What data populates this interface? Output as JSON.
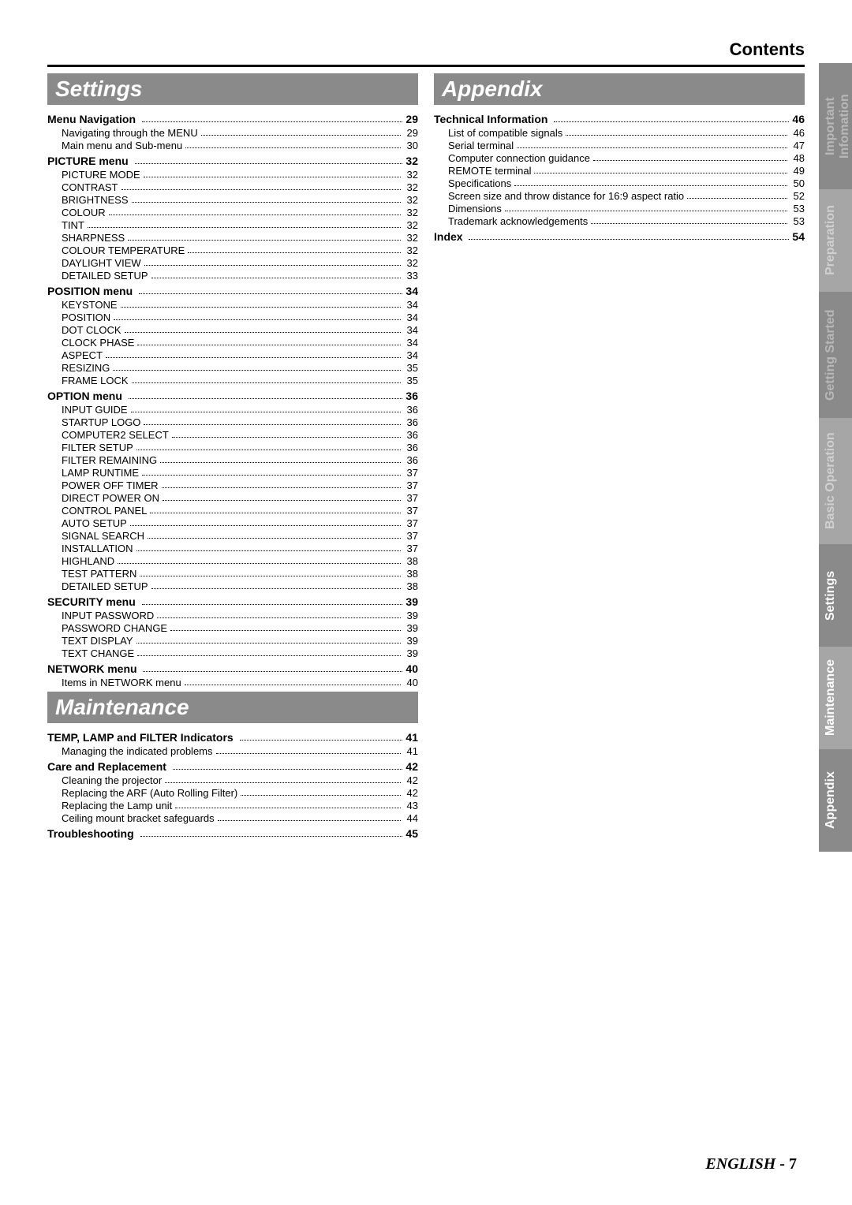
{
  "page": {
    "contents_label": "Contents",
    "footer_language": "ENGLISH",
    "footer_sep": " - ",
    "footer_page": "7"
  },
  "tabs": [
    {
      "label": "Important\nInfomation",
      "bg": "#8a8a8a",
      "color": "#b8b8b8"
    },
    {
      "label": "Preparation",
      "bg": "#a6a6a6",
      "color": "#d0d0d0"
    },
    {
      "label": "Getting Started",
      "bg": "#8a8a8a",
      "color": "#b8b8b8"
    },
    {
      "label": "Basic Operation",
      "bg": "#a6a6a6",
      "color": "#d0d0d0"
    },
    {
      "label": "Settings",
      "bg": "#8a8a8a",
      "color": "#ffffff"
    },
    {
      "label": "Maintenance",
      "bg": "#a6a6a6",
      "color": "#ffffff"
    },
    {
      "label": "Appendix",
      "bg": "#8a8a8a",
      "color": "#ffffff"
    }
  ],
  "left": {
    "section1": {
      "title": "Settings",
      "groups": [
        {
          "title": "Menu Navigation",
          "page": "29",
          "items": [
            {
              "label": "Navigating through the MENU",
              "page": "29"
            },
            {
              "label": "Main menu and Sub-menu",
              "page": "30"
            }
          ]
        },
        {
          "title": "PICTURE menu",
          "page": "32",
          "items": [
            {
              "label": "PICTURE MODE",
              "page": "32"
            },
            {
              "label": "CONTRAST",
              "page": "32"
            },
            {
              "label": "BRIGHTNESS",
              "page": "32"
            },
            {
              "label": "COLOUR",
              "page": "32"
            },
            {
              "label": "TINT",
              "page": "32"
            },
            {
              "label": "SHARPNESS",
              "page": "32"
            },
            {
              "label": "COLOUR TEMPERATURE",
              "page": "32"
            },
            {
              "label": "DAYLIGHT VIEW",
              "page": "32"
            },
            {
              "label": "DETAILED SETUP",
              "page": "33"
            }
          ]
        },
        {
          "title": "POSITION menu",
          "page": "34",
          "items": [
            {
              "label": "KEYSTONE",
              "page": "34"
            },
            {
              "label": "POSITION",
              "page": "34"
            },
            {
              "label": "DOT CLOCK",
              "page": "34"
            },
            {
              "label": "CLOCK PHASE",
              "page": "34"
            },
            {
              "label": "ASPECT",
              "page": "34"
            },
            {
              "label": "RESIZING",
              "page": "35"
            },
            {
              "label": "FRAME LOCK",
              "page": "35"
            }
          ]
        },
        {
          "title": "OPTION menu",
          "page": "36",
          "items": [
            {
              "label": "INPUT GUIDE",
              "page": "36"
            },
            {
              "label": "STARTUP LOGO",
              "page": "36"
            },
            {
              "label": "COMPUTER2 SELECT",
              "page": "36"
            },
            {
              "label": "FILTER SETUP",
              "page": "36"
            },
            {
              "label": "FILTER REMAINING",
              "page": "36"
            },
            {
              "label": "LAMP RUNTIME",
              "page": "37"
            },
            {
              "label": "POWER OFF TIMER",
              "page": "37"
            },
            {
              "label": "DIRECT POWER ON",
              "page": "37"
            },
            {
              "label": "CONTROL PANEL",
              "page": "37"
            },
            {
              "label": "AUTO SETUP",
              "page": "37"
            },
            {
              "label": "SIGNAL SEARCH",
              "page": "37"
            },
            {
              "label": "INSTALLATION",
              "page": "37"
            },
            {
              "label": "HIGHLAND",
              "page": "38"
            },
            {
              "label": "TEST PATTERN",
              "page": "38"
            },
            {
              "label": "DETAILED SETUP",
              "page": "38"
            }
          ]
        },
        {
          "title": "SECURITY menu",
          "page": "39",
          "items": [
            {
              "label": "INPUT PASSWORD",
              "page": "39"
            },
            {
              "label": "PASSWORD CHANGE",
              "page": "39"
            },
            {
              "label": "TEXT DISPLAY",
              "page": "39"
            },
            {
              "label": "TEXT CHANGE",
              "page": "39"
            }
          ]
        },
        {
          "title": "NETWORK menu",
          "page": "40",
          "items": [
            {
              "label": "Items in NETWORK menu",
              "page": "40"
            }
          ]
        }
      ]
    },
    "section2": {
      "title": "Maintenance",
      "groups": [
        {
          "title": "TEMP, LAMP and FILTER Indicators",
          "page": "41",
          "items": [
            {
              "label": "Managing the indicated problems",
              "page": "41"
            }
          ]
        },
        {
          "title": "Care and Replacement",
          "page": "42",
          "items": [
            {
              "label": "Cleaning the projector",
              "page": "42"
            },
            {
              "label": "Replacing the ARF (Auto Rolling Filter)",
              "page": "42"
            },
            {
              "label": "Replacing the Lamp unit",
              "page": "43"
            },
            {
              "label": "Ceiling mount bracket safeguards",
              "page": "44"
            }
          ]
        },
        {
          "title": "Troubleshooting",
          "page": "45",
          "items": []
        }
      ]
    }
  },
  "right": {
    "section1": {
      "title": "Appendix",
      "groups": [
        {
          "title": "Technical Information",
          "page": "46",
          "items": [
            {
              "label": "List of compatible signals",
              "page": "46"
            },
            {
              "label": "Serial terminal",
              "page": "47"
            },
            {
              "label": "Computer connection guidance",
              "page": "48"
            },
            {
              "label": "REMOTE terminal",
              "page": "49"
            },
            {
              "label": "Specifications",
              "page": "50"
            },
            {
              "label": "Screen size and throw distance for 16:9 aspect ratio",
              "page": "52"
            },
            {
              "label": "Dimensions",
              "page": "53"
            },
            {
              "label": "Trademark acknowledgements",
              "page": "53"
            }
          ]
        },
        {
          "title": "Index",
          "page": "54",
          "items": []
        }
      ]
    }
  }
}
